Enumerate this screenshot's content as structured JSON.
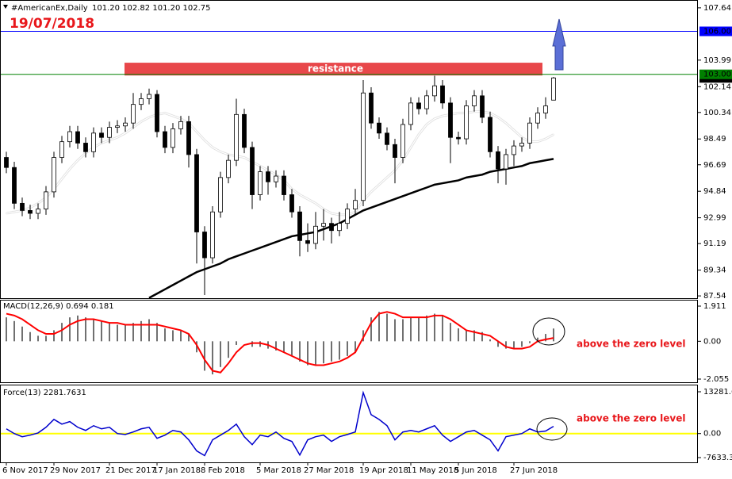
{
  "chart_data": [
    {
      "type": "candlestick",
      "title": "#AmericanEx,Daily",
      "ohlc_header": "101.20 102.82 101.20 102.75",
      "date_label": "19/07/2018",
      "categories": [
        "6 Nov 2017",
        null,
        null,
        null,
        null,
        null,
        "29 Nov 2017",
        null,
        null,
        null,
        null,
        null,
        null,
        "21 Dec 2017",
        null,
        null,
        null,
        null,
        null,
        "17 Jan 2018",
        null,
        null,
        null,
        null,
        null,
        "8 Feb 2018",
        null,
        null,
        null,
        null,
        null,
        null,
        "5 Mar 2018",
        null,
        null,
        null,
        null,
        null,
        "27 Mar 2018",
        null,
        null,
        null,
        null,
        null,
        null,
        "19 Apr 2018",
        null,
        null,
        null,
        null,
        null,
        "11 May 2018",
        null,
        null,
        null,
        null,
        null,
        "5 Jun 2018",
        null,
        null,
        null,
        null,
        null,
        null,
        "27 Jun 2018",
        null,
        null,
        null,
        null,
        null
      ],
      "open": [
        97.2,
        96.5,
        94.0,
        93.5,
        93.3,
        93.6,
        94.8,
        97.2,
        98.3,
        99.0,
        98.2,
        97.6,
        98.9,
        98.6,
        99.3,
        99.4,
        99.6,
        100.9,
        101.3,
        101.6,
        99.0,
        97.9,
        99.2,
        99.7,
        97.4,
        92.0,
        90.2,
        93.4,
        95.8,
        97.0,
        100.2,
        97.9,
        94.6,
        96.2,
        95.5,
        95.9,
        94.6,
        93.4,
        91.4,
        91.2,
        92.4,
        92.6,
        92.1,
        92.6,
        93.6,
        94.2,
        101.7,
        99.6,
        98.9,
        98.1,
        97.2,
        99.5,
        101.0,
        100.6,
        101.5,
        102.2,
        101.0,
        98.6,
        98.5,
        100.8,
        101.5,
        100.0,
        97.6,
        96.4,
        97.4,
        98.0,
        98.2,
        99.6,
        100.3,
        101.2
      ],
      "high": [
        97.6,
        96.9,
        94.4,
        93.9,
        94.0,
        95.2,
        97.6,
        98.7,
        99.4,
        99.4,
        98.6,
        99.3,
        99.3,
        99.7,
        99.8,
        100.0,
        101.7,
        101.7,
        102.0,
        101.9,
        99.4,
        99.6,
        100.1,
        100.1,
        97.8,
        92.4,
        93.8,
        96.2,
        97.4,
        101.3,
        100.6,
        98.3,
        96.6,
        96.6,
        96.3,
        96.3,
        95.0,
        93.8,
        92.6,
        93.4,
        93.6,
        93.0,
        93.4,
        94.0,
        95.0,
        102.6,
        102.1,
        100.0,
        99.3,
        98.5,
        99.9,
        101.4,
        101.4,
        101.9,
        102.9,
        102.6,
        101.4,
        99.0,
        101.2,
        101.9,
        101.9,
        100.4,
        98.0,
        97.8,
        98.4,
        98.6,
        100.0,
        100.7,
        101.4,
        102.82
      ],
      "low": [
        96.1,
        93.6,
        93.1,
        92.9,
        92.9,
        93.2,
        94.4,
        96.8,
        97.9,
        97.8,
        97.2,
        97.2,
        98.2,
        98.2,
        98.9,
        99.0,
        99.2,
        100.5,
        100.9,
        98.6,
        97.5,
        97.5,
        98.8,
        96.5,
        89.8,
        87.6,
        89.8,
        93.0,
        95.4,
        96.6,
        97.5,
        93.6,
        94.2,
        94.6,
        95.1,
        94.2,
        93.0,
        90.3,
        90.6,
        90.8,
        91.4,
        91.2,
        91.7,
        92.2,
        93.2,
        93.8,
        99.2,
        98.5,
        97.7,
        95.4,
        96.8,
        99.1,
        100.2,
        100.2,
        101.1,
        100.6,
        96.8,
        98.1,
        98.1,
        100.4,
        99.6,
        97.2,
        95.4,
        95.3,
        96.6,
        97.6,
        97.8,
        99.2,
        99.9,
        101.2
      ],
      "close": [
        96.5,
        94.0,
        93.5,
        93.3,
        93.6,
        94.8,
        97.2,
        98.3,
        99.0,
        98.2,
        97.6,
        98.9,
        98.6,
        99.3,
        99.4,
        99.6,
        100.9,
        101.3,
        101.6,
        99.0,
        97.9,
        99.2,
        99.7,
        97.4,
        92.0,
        90.2,
        93.4,
        95.8,
        97.0,
        100.2,
        97.9,
        94.6,
        96.2,
        95.5,
        95.9,
        94.6,
        93.4,
        91.4,
        91.2,
        92.4,
        92.6,
        92.1,
        92.6,
        93.6,
        94.2,
        101.7,
        99.6,
        98.9,
        98.1,
        97.2,
        99.5,
        101.0,
        100.6,
        101.5,
        102.2,
        101.0,
        98.6,
        98.5,
        100.8,
        101.5,
        100.0,
        97.6,
        96.4,
        97.4,
        98.0,
        98.2,
        99.6,
        100.3,
        100.8,
        102.75
      ],
      "series": [
        {
          "color": "#ffffff",
          "values": [
            93.3,
            93.4,
            93.5,
            93.7,
            94.0,
            94.4,
            95.0,
            95.7,
            96.4,
            97.0,
            97.5,
            97.9,
            98.2,
            98.4,
            98.6,
            98.9,
            99.3,
            99.7,
            100.0,
            100.2,
            100.3,
            100.1,
            99.9,
            99.6,
            99.0,
            98.4,
            97.9,
            97.6,
            97.4,
            97.3,
            97.2,
            96.9,
            96.6,
            96.3,
            96.0,
            95.6,
            95.0,
            94.6,
            94.3,
            94.0,
            93.6,
            93.3,
            93.2,
            93.2,
            93.4,
            94.2,
            94.8,
            95.3,
            95.8,
            96.3,
            97.0,
            97.9,
            98.8,
            99.5,
            99.9,
            100.1,
            100.2,
            100.3,
            100.3,
            100.4,
            100.4,
            100.3,
            100.0,
            99.6,
            99.1,
            98.6,
            98.3,
            98.3,
            98.5,
            98.8
          ]
        },
        {
          "color": "#000000",
          "values": [
            null,
            null,
            null,
            null,
            null,
            null,
            null,
            null,
            null,
            null,
            null,
            null,
            null,
            null,
            null,
            null,
            null,
            null,
            87.4,
            87.7,
            88.0,
            88.3,
            88.6,
            88.9,
            89.2,
            89.4,
            89.6,
            89.8,
            90.1,
            90.3,
            90.5,
            90.7,
            90.9,
            91.1,
            91.3,
            91.5,
            91.7,
            91.8,
            91.9,
            92.0,
            92.2,
            92.4,
            92.6,
            92.9,
            93.2,
            93.5,
            93.7,
            93.9,
            94.1,
            94.3,
            94.5,
            94.7,
            94.9,
            95.1,
            95.3,
            95.4,
            95.5,
            95.6,
            95.8,
            95.9,
            96.0,
            96.2,
            96.3,
            96.4,
            96.5,
            96.6,
            96.8,
            96.9,
            97.0,
            97.1
          ]
        }
      ],
      "levels": [
        {
          "value": 106,
          "label": "106.00",
          "color": "#0000ff"
        },
        {
          "value": 103,
          "label": "103.00",
          "color": "#008000"
        }
      ],
      "last_price": 102.75,
      "resistance": {
        "label": "resistance",
        "zone": [
          102.92,
          103.81
        ],
        "color": "#e8474a"
      },
      "ylim": [
        87.38,
        107.91
      ],
      "yticks": [
        107.64,
        103.99,
        102.14,
        100.34,
        98.49,
        96.69,
        94.84,
        92.99,
        91.19,
        89.34,
        87.54
      ]
    },
    {
      "type": "macd",
      "title": "MACD(12,26,9) 0.694 0.181",
      "annotation": "above the zero level",
      "histogram": {
        "color": "#707070",
        "values": [
          1.3,
          1.1,
          0.8,
          0.5,
          0.3,
          0.3,
          0.6,
          1.0,
          1.3,
          1.4,
          1.3,
          1.2,
          1.1,
          1.0,
          0.9,
          0.9,
          1.0,
          1.1,
          1.2,
          1.0,
          0.7,
          0.6,
          0.6,
          0.4,
          -0.6,
          -1.6,
          -1.8,
          -1.4,
          -0.9,
          -0.2,
          0.0,
          -0.3,
          -0.3,
          -0.4,
          -0.5,
          -0.6,
          -0.8,
          -1.1,
          -1.3,
          -1.3,
          -1.2,
          -1.1,
          -1.0,
          -0.8,
          -0.6,
          0.6,
          1.3,
          1.6,
          1.5,
          1.2,
          1.2,
          1.3,
          1.3,
          1.4,
          1.5,
          1.4,
          1.0,
          0.7,
          0.6,
          0.6,
          0.5,
          0.1,
          -0.3,
          -0.4,
          -0.4,
          -0.3,
          -0.1,
          0.2,
          0.4,
          0.694
        ]
      },
      "signal": {
        "color": "#ff0000",
        "values": [
          1.5,
          1.4,
          1.2,
          0.9,
          0.6,
          0.4,
          0.4,
          0.6,
          0.9,
          1.1,
          1.2,
          1.2,
          1.1,
          1.0,
          1.0,
          0.9,
          0.9,
          0.9,
          0.9,
          0.9,
          0.8,
          0.7,
          0.6,
          0.4,
          -0.2,
          -1.0,
          -1.6,
          -1.7,
          -1.2,
          -0.6,
          -0.2,
          -0.1,
          -0.1,
          -0.2,
          -0.4,
          -0.6,
          -0.8,
          -1.0,
          -1.2,
          -1.3,
          -1.3,
          -1.2,
          -1.1,
          -0.9,
          -0.6,
          0.2,
          1.0,
          1.5,
          1.6,
          1.5,
          1.3,
          1.3,
          1.3,
          1.3,
          1.4,
          1.4,
          1.2,
          0.9,
          0.6,
          0.5,
          0.4,
          0.3,
          0.0,
          -0.3,
          -0.4,
          -0.4,
          -0.3,
          0.0,
          0.1,
          0.181
        ]
      },
      "ylim": [
        -2.227,
        2.213
      ],
      "yticks": [
        1.911,
        {
          "value": 0,
          "label": "0.00"
        },
        -2.055
      ]
    },
    {
      "type": "line",
      "title": "Force(13) 2281.7631",
      "annotation": "above the zero level",
      "color": "#0000cc",
      "values": [
        1500,
        0,
        -1000,
        -500,
        200,
        2000,
        4500,
        3000,
        3800,
        2000,
        1000,
        2500,
        1500,
        2000,
        0,
        -300,
        500,
        1500,
        2000,
        -1500,
        -500,
        1000,
        500,
        -2000,
        -5500,
        -7000,
        -2000,
        -500,
        1000,
        3000,
        -1000,
        -3500,
        -500,
        -1000,
        500,
        -1500,
        -2500,
        -6800,
        -2000,
        -1000,
        -500,
        -2500,
        -1000,
        -300,
        500,
        13000,
        6000,
        4500,
        2500,
        -2000,
        500,
        1000,
        500,
        1500,
        2500,
        -500,
        -2500,
        -1000,
        500,
        1000,
        -500,
        -2000,
        -5500,
        -1000,
        -500,
        0,
        1500,
        500,
        800,
        2281.7631
      ],
      "levels": [
        {
          "value": 0,
          "color": "#ffff00"
        }
      ],
      "ylim": [
        -9145,
        15298
      ],
      "yticks": [
        13281.63,
        {
          "value": 0,
          "label": "0.00"
        },
        -7633.36
      ]
    }
  ]
}
